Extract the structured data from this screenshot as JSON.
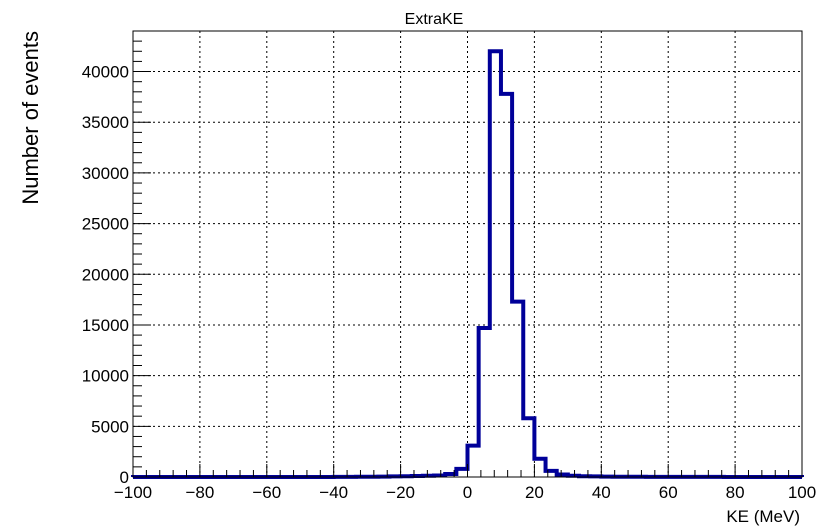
{
  "chart_data": {
    "type": "bar",
    "title": "ExtraKE",
    "xlabel": "KE (MeV)",
    "ylabel": "Number of events",
    "xlim": [
      -100,
      100
    ],
    "ylim": [
      0,
      44000
    ],
    "grid": true,
    "bin_width": 3.333,
    "bins_left_edges": [
      -100,
      -96.667,
      -93.333,
      -90,
      -86.667,
      -83.333,
      -80,
      -76.667,
      -73.333,
      -70,
      -66.667,
      -63.333,
      -60,
      -56.667,
      -53.333,
      -50,
      -46.667,
      -43.333,
      -40,
      -36.667,
      -33.333,
      -30,
      -26.667,
      -23.333,
      -20,
      -16.667,
      -13.333,
      -10,
      -6.667,
      -3.333,
      0,
      3.333,
      6.667,
      10,
      13.333,
      16.667,
      20,
      23.333,
      26.667,
      30,
      33.333,
      36.667,
      40,
      43.333,
      46.667,
      50,
      53.333,
      56.667,
      60,
      63.333,
      66.667,
      70,
      73.333,
      76.667,
      80,
      83.333,
      86.667,
      90,
      93.333,
      96.667
    ],
    "values": [
      5,
      5,
      5,
      5,
      5,
      5,
      5,
      5,
      5,
      5,
      5,
      5,
      5,
      5,
      5,
      5,
      5,
      5,
      10,
      10,
      20,
      30,
      40,
      60,
      80,
      100,
      120,
      150,
      300,
      800,
      3100,
      14700,
      42000,
      37800,
      17300,
      5800,
      1800,
      600,
      250,
      120,
      80,
      60,
      40,
      30,
      20,
      20,
      15,
      15,
      10,
      10,
      10,
      8,
      8,
      5,
      5,
      5,
      5,
      5,
      5,
      5
    ],
    "x_ticks": [
      "−100",
      "−80",
      "−60",
      "−40",
      "−20",
      "0",
      "20",
      "40",
      "60",
      "80",
      "100"
    ],
    "y_ticks": [
      "0",
      "5000",
      "10000",
      "15000",
      "20000",
      "25000",
      "30000",
      "35000",
      "40000"
    ],
    "line_color": "#000099"
  }
}
